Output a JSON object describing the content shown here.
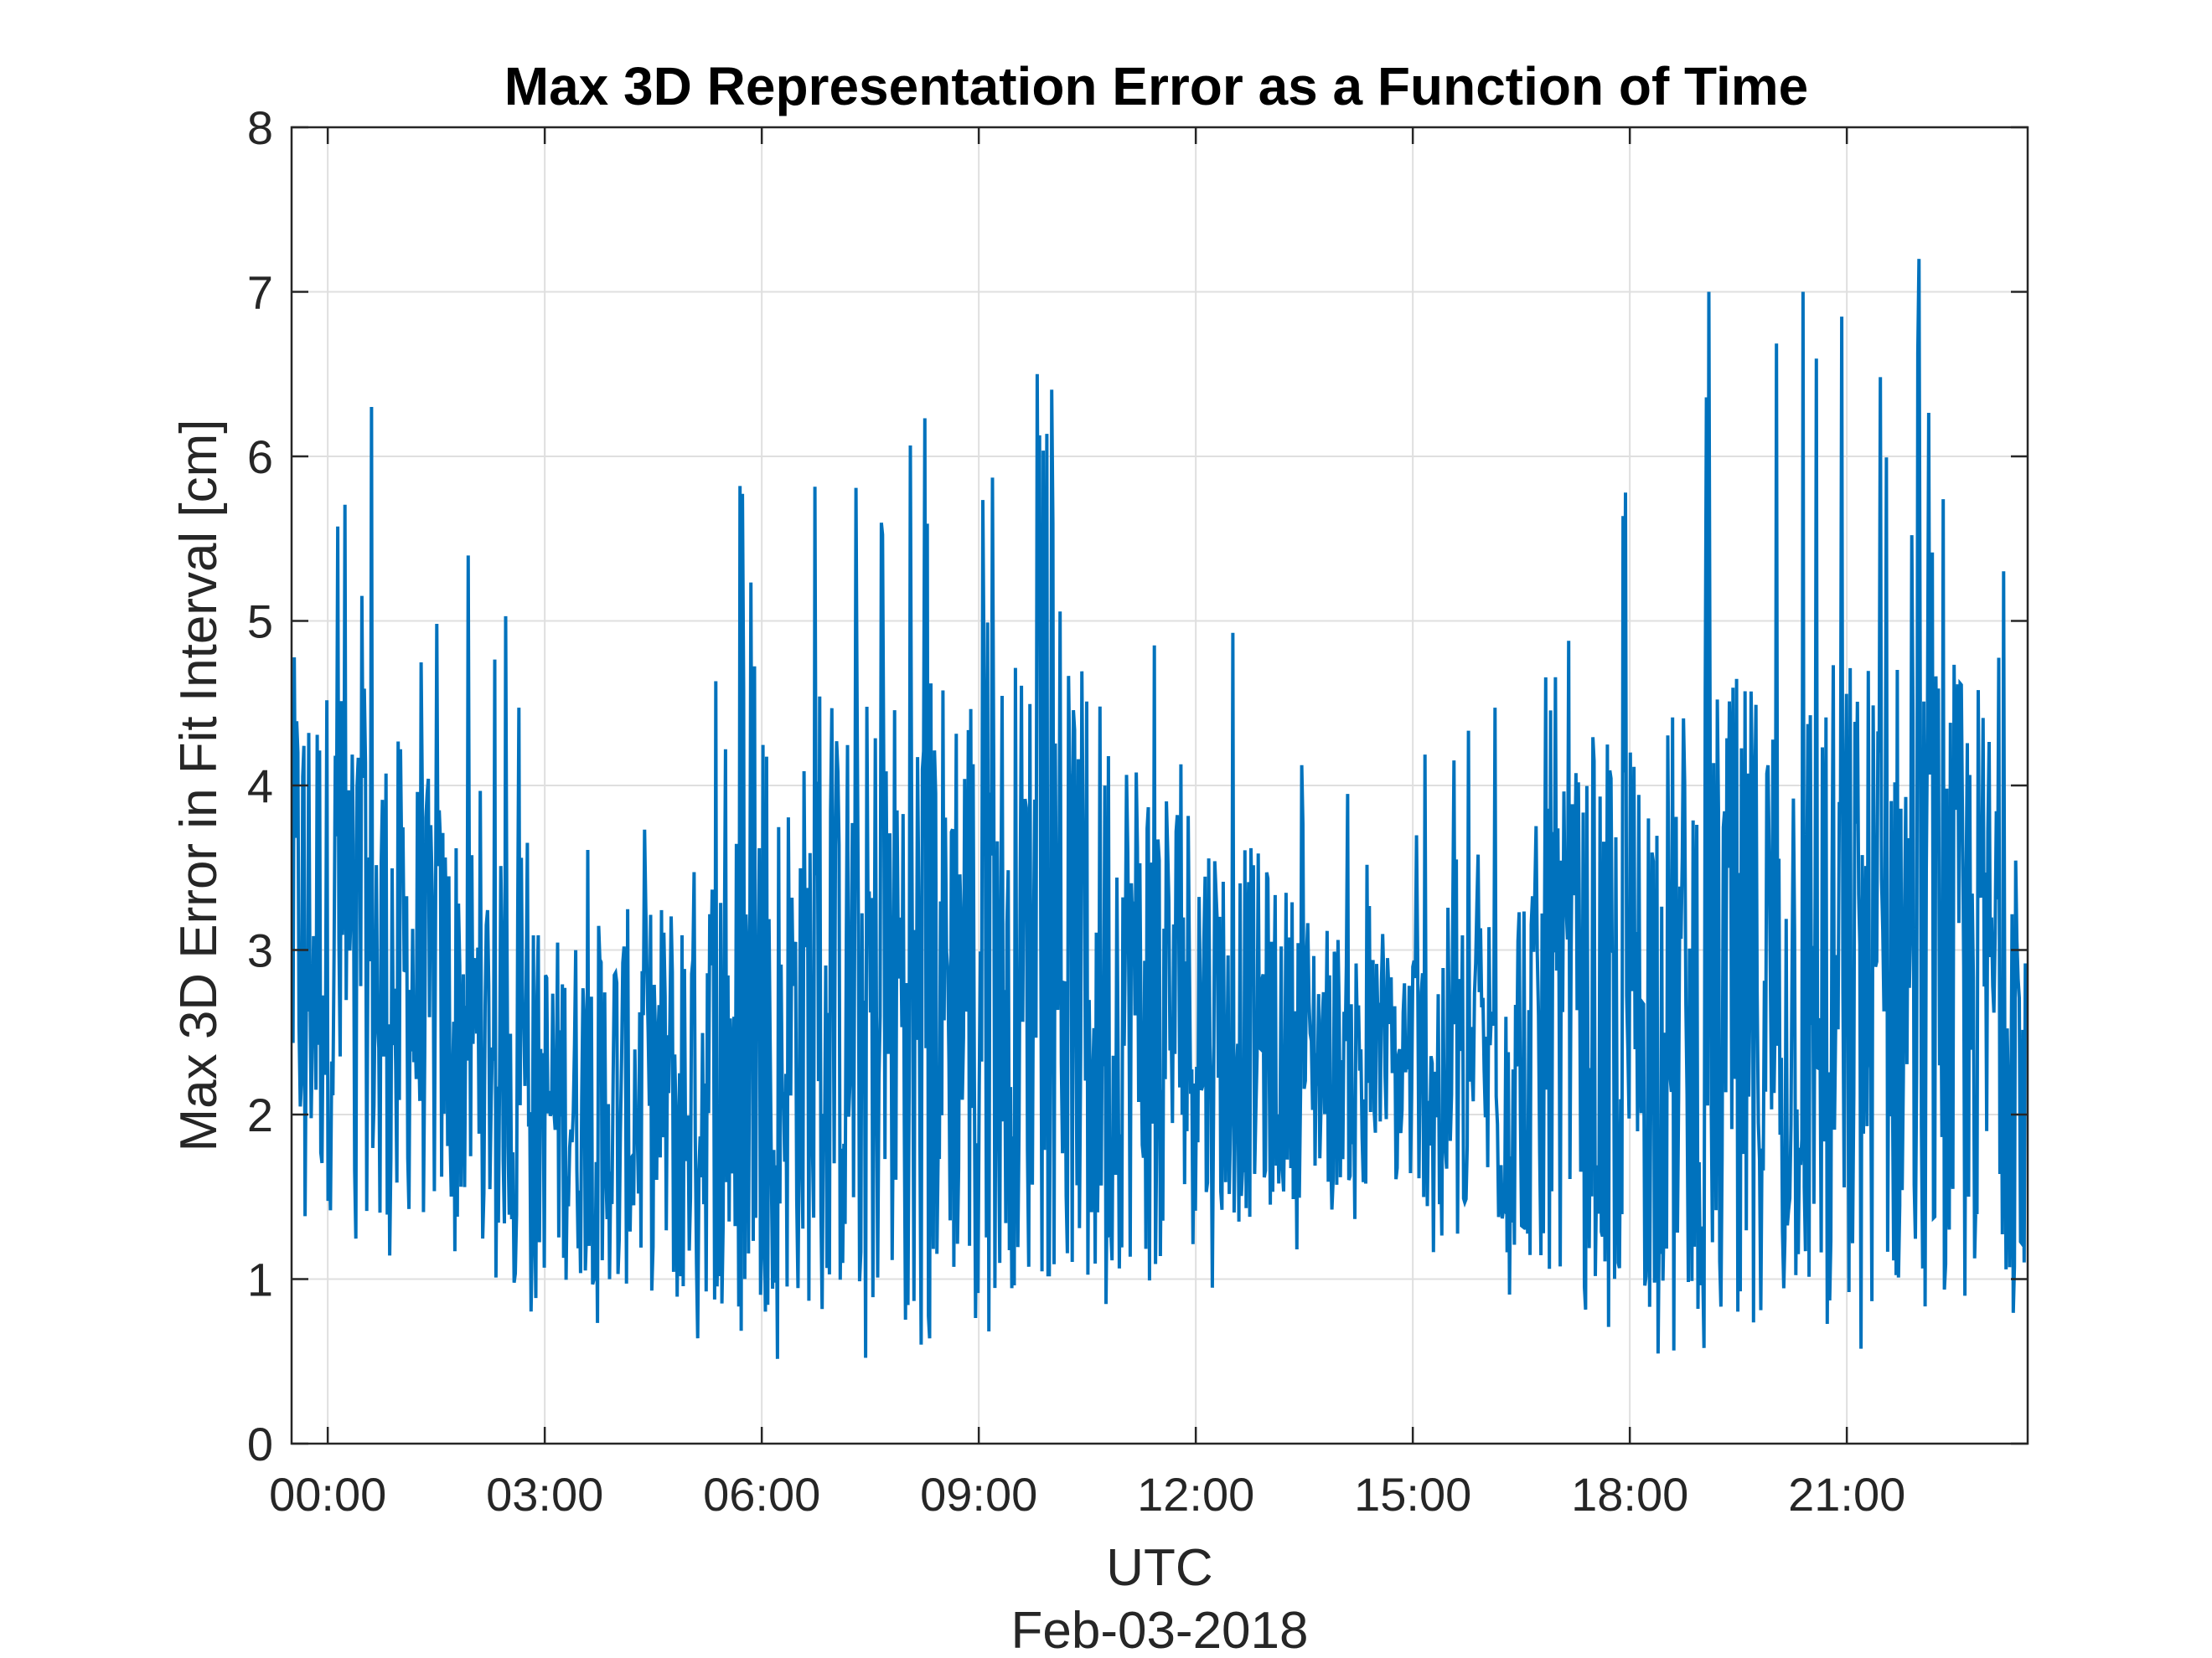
{
  "chart_data": {
    "type": "line",
    "title": "Max 3D Representation Error as a Function of Time",
    "xlabel": "UTC",
    "xlabel_secondary": "Feb-03-2018",
    "ylabel": "Max 3D Error in Fit Interval [cm]",
    "ylim": [
      0,
      8
    ],
    "xlim_hours": [
      -0.5,
      23.5
    ],
    "x_ticks": [
      {
        "hour": 0,
        "label": "00:00"
      },
      {
        "hour": 3,
        "label": "03:00"
      },
      {
        "hour": 6,
        "label": "06:00"
      },
      {
        "hour": 9,
        "label": "09:00"
      },
      {
        "hour": 12,
        "label": "12:00"
      },
      {
        "hour": 15,
        "label": "15:00"
      },
      {
        "hour": 18,
        "label": "18:00"
      },
      {
        "hour": 21,
        "label": "21:00"
      }
    ],
    "y_ticks": [
      0,
      1,
      2,
      3,
      4,
      5,
      6,
      7,
      8
    ],
    "grid": true,
    "series": [
      {
        "color": "#0072BD",
        "sample_interval_hours": 0.0167,
        "envelope": {
          "hour": [
            -0.5,
            0.5,
            1.5,
            2.5,
            3.0,
            4.5,
            6.0,
            7.5,
            9.0,
            10.5,
            12.0,
            13.5,
            14.5,
            16.0,
            17.5,
            19.0,
            20.5,
            22.0,
            23.5
          ],
          "upper": [
            4.8,
            4.6,
            4.0,
            3.5,
            3.1,
            3.3,
            4.0,
            4.6,
            4.9,
            4.7,
            4.0,
            3.3,
            3.0,
            3.4,
            4.2,
            4.6,
            4.8,
            4.9,
            4.5
          ],
          "lower": [
            1.1,
            1.1,
            1.0,
            0.9,
            0.7,
            0.6,
            0.5,
            0.5,
            0.6,
            0.7,
            0.9,
            1.2,
            1.3,
            0.9,
            0.6,
            0.5,
            0.5,
            0.5,
            0.8
          ],
          "spike_max": [
            6.3,
            6.3,
            5.5,
            5.3,
            4.0,
            4.8,
            6.3,
            6.2,
            6.5,
            6.5,
            5.9,
            4.2,
            3.8,
            5.0,
            5.8,
            7.0,
            7.0,
            7.2,
            6.0
          ]
        },
        "peaks": [
          {
            "hour": 0.6,
            "value": 6.3
          },
          {
            "hour": 9.8,
            "value": 6.5
          },
          {
            "hour": 19.1,
            "value": 7.0
          },
          {
            "hour": 20.4,
            "value": 7.0
          },
          {
            "hour": 22.0,
            "value": 7.2
          }
        ]
      }
    ]
  }
}
